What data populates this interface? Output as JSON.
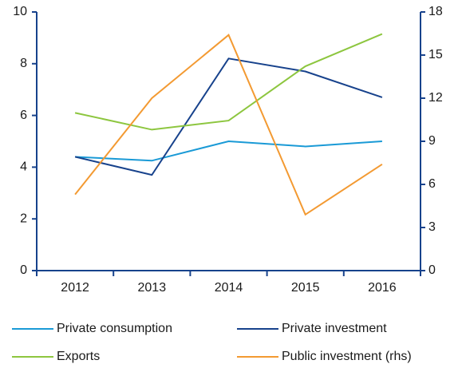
{
  "chart_data": {
    "type": "line",
    "categories": [
      "2012",
      "2013",
      "2014",
      "2015",
      "2016"
    ],
    "series": [
      {
        "name": "Private consumption",
        "color": "#1a9ad6",
        "values": [
          4.4,
          4.25,
          5.0,
          4.8,
          5.0
        ]
      },
      {
        "name": "Private investment",
        "color": "#17428c",
        "values": [
          4.4,
          3.7,
          8.2,
          7.7,
          6.7
        ]
      },
      {
        "name": "Exports",
        "color": "#8dc63f",
        "values": [
          6.1,
          5.45,
          5.8,
          7.9,
          9.15
        ]
      },
      {
        "name": "Public investment (rhs)",
        "color": "#f39a32",
        "axis": "y2",
        "values": [
          5.3,
          12,
          16.4,
          3.9,
          7.4
        ]
      }
    ],
    "ylim": [
      0,
      10
    ],
    "yticks": [
      0,
      2,
      4,
      6,
      8,
      10
    ],
    "y2lim": [
      0,
      18
    ],
    "y2ticks": [
      0,
      3,
      6,
      9,
      12,
      15,
      18
    ],
    "grid": false
  }
}
